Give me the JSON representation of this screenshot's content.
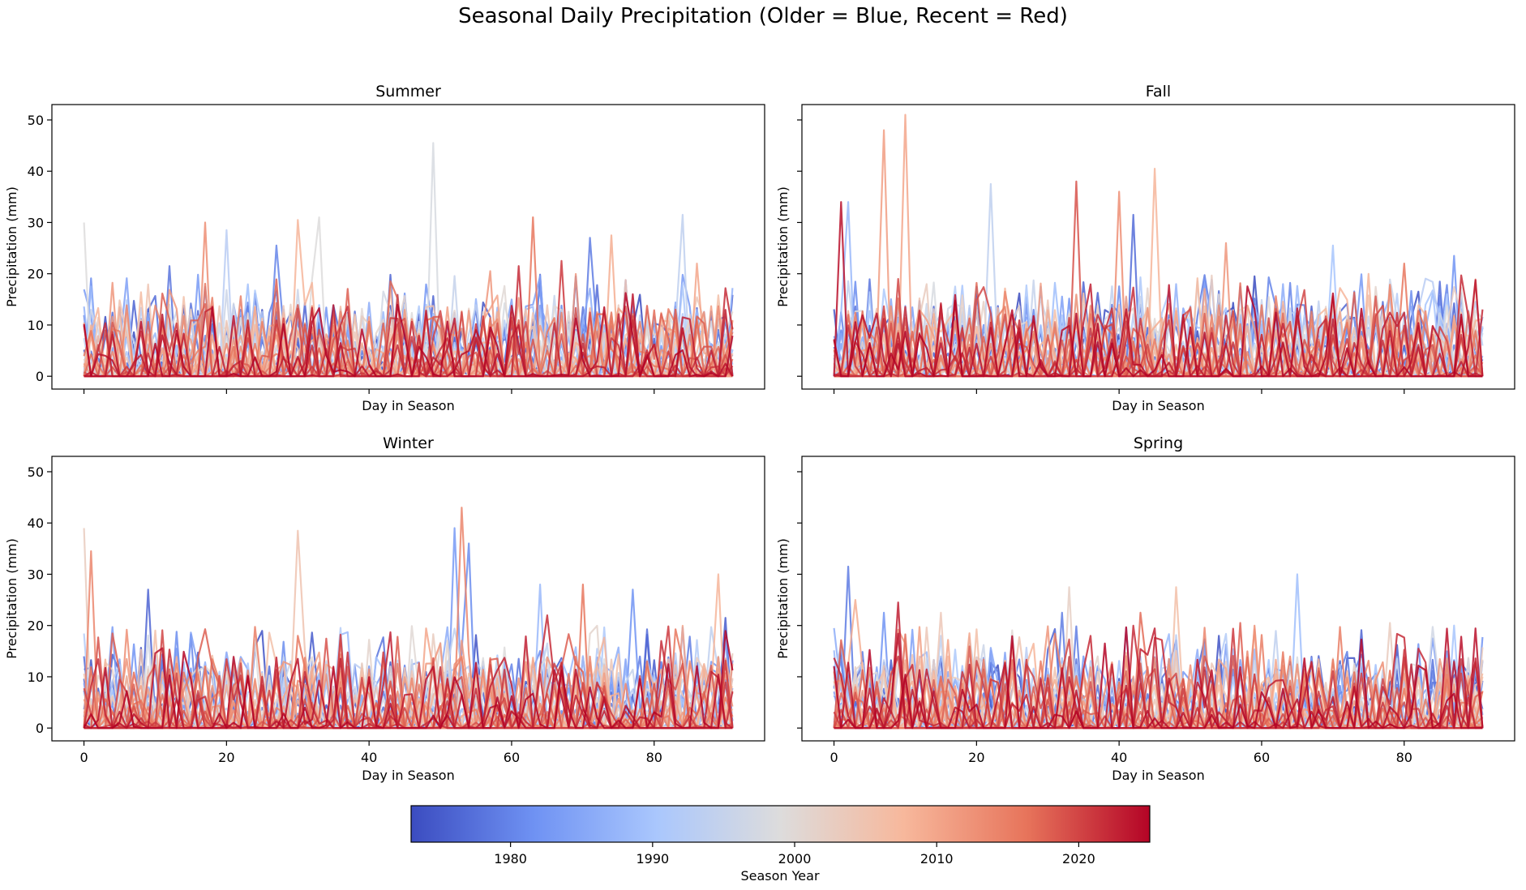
{
  "chart_data": {
    "type": "line",
    "title": "Seasonal Daily Precipitation (Older = Blue, Recent = Red)",
    "colormap": "coolwarm",
    "colorbar": {
      "label": "Season Year",
      "range": [
        1973,
        2025
      ],
      "ticks": [
        1980,
        1990,
        2000,
        2010,
        2020
      ],
      "tick_labels": [
        "1980",
        "1990",
        "2000",
        "2010",
        "2020"
      ],
      "colors": [
        "#3b4cc0",
        "#6f92f3",
        "#aac7fd",
        "#dddcdc",
        "#f7b89c",
        "#e7745b",
        "#b40426"
      ]
    },
    "shared_y": true,
    "ylim": [
      -2.5,
      53
    ],
    "xlim": [
      -4.5,
      95.5
    ],
    "yticks": [
      0,
      10,
      20,
      30,
      40,
      50
    ],
    "xticks": [
      0,
      20,
      40,
      60,
      80
    ],
    "years": [
      1973,
      2025
    ],
    "days": [
      0,
      91
    ],
    "panels": [
      {
        "title": "Summer",
        "xlabel": "Day in Season",
        "ylabel": "Precipitation (mm)",
        "show_ylabels": true,
        "show_xlabels": false,
        "peaks": [
          {
            "day": 0,
            "value": 30,
            "year": 1999
          },
          {
            "day": 12,
            "value": 21.5,
            "year": 1978
          },
          {
            "day": 17,
            "value": 30,
            "year": 2013
          },
          {
            "day": 20,
            "value": 28.5,
            "year": 1993
          },
          {
            "day": 27,
            "value": 25.5,
            "year": 1980
          },
          {
            "day": 30,
            "value": 30.5,
            "year": 2008
          },
          {
            "day": 33,
            "value": 31,
            "year": 1999
          },
          {
            "day": 49,
            "value": 45.5,
            "year": 1998
          },
          {
            "day": 57,
            "value": 20.5,
            "year": 2012
          },
          {
            "day": 61,
            "value": 21.5,
            "year": 2022
          },
          {
            "day": 63,
            "value": 31,
            "year": 2016
          },
          {
            "day": 67,
            "value": 22.5,
            "year": 2021
          },
          {
            "day": 71,
            "value": 27,
            "year": 1979
          },
          {
            "day": 74,
            "value": 27.5,
            "year": 2009
          },
          {
            "day": 77,
            "value": 16,
            "year": 2024
          },
          {
            "day": 84,
            "value": 31.5,
            "year": 1994
          },
          {
            "day": 86,
            "value": 22,
            "year": 2010
          }
        ]
      },
      {
        "title": "Fall",
        "xlabel": "Day in Season",
        "ylabel": "Precipitation (mm)",
        "show_ylabels": false,
        "show_xlabels": false,
        "peaks": [
          {
            "day": 1,
            "value": 34,
            "year": 2024
          },
          {
            "day": 2,
            "value": 34,
            "year": 1988
          },
          {
            "day": 7,
            "value": 48,
            "year": 2011
          },
          {
            "day": 10,
            "value": 51,
            "year": 2010
          },
          {
            "day": 22,
            "value": 37.5,
            "year": 1994
          },
          {
            "day": 34,
            "value": 38,
            "year": 2019
          },
          {
            "day": 40,
            "value": 36,
            "year": 2013
          },
          {
            "day": 42,
            "value": 31.5,
            "year": 1977
          },
          {
            "day": 45,
            "value": 40.5,
            "year": 2008
          },
          {
            "day": 55,
            "value": 26,
            "year": 2012
          },
          {
            "day": 70,
            "value": 25.5,
            "year": 1990
          },
          {
            "day": 80,
            "value": 22,
            "year": 2016
          },
          {
            "day": 87,
            "value": 23.5,
            "year": 1982
          }
        ]
      },
      {
        "title": "Winter",
        "xlabel": "Day in Season",
        "ylabel": "Precipitation (mm)",
        "show_ylabels": true,
        "show_xlabels": true,
        "peaks": [
          {
            "day": 0,
            "value": 39,
            "year": 2003
          },
          {
            "day": 1,
            "value": 34.5,
            "year": 2014
          },
          {
            "day": 9,
            "value": 27,
            "year": 1976
          },
          {
            "day": 30,
            "value": 38.5,
            "year": 2005
          },
          {
            "day": 52,
            "value": 39,
            "year": 1983
          },
          {
            "day": 53,
            "value": 43,
            "year": 2014
          },
          {
            "day": 54,
            "value": 36,
            "year": 1981
          },
          {
            "day": 64,
            "value": 28,
            "year": 1988
          },
          {
            "day": 65,
            "value": 22,
            "year": 2022
          },
          {
            "day": 70,
            "value": 28,
            "year": 2016
          },
          {
            "day": 77,
            "value": 27,
            "year": 1982
          },
          {
            "day": 89,
            "value": 30,
            "year": 2008
          },
          {
            "day": 90,
            "value": 21.5,
            "year": 1975
          }
        ]
      },
      {
        "title": "Spring",
        "xlabel": "Day in Season",
        "ylabel": "Precipitation (mm)",
        "show_ylabels": false,
        "show_xlabels": true,
        "peaks": [
          {
            "day": 2,
            "value": 31.5,
            "year": 1979
          },
          {
            "day": 3,
            "value": 25,
            "year": 2009
          },
          {
            "day": 7,
            "value": 22.5,
            "year": 1982
          },
          {
            "day": 9,
            "value": 24.5,
            "year": 2023
          },
          {
            "day": 15,
            "value": 22.5,
            "year": 2004
          },
          {
            "day": 32,
            "value": 22.5,
            "year": 1979
          },
          {
            "day": 33,
            "value": 27.5,
            "year": 2002
          },
          {
            "day": 36,
            "value": 18,
            "year": 2022
          },
          {
            "day": 43,
            "value": 22.5,
            "year": 2017
          },
          {
            "day": 48,
            "value": 27.5,
            "year": 2006
          },
          {
            "day": 57,
            "value": 20.5,
            "year": 2018
          },
          {
            "day": 65,
            "value": 30,
            "year": 1989
          },
          {
            "day": 78,
            "value": 20.5,
            "year": 2003
          },
          {
            "day": 82,
            "value": 15.5,
            "year": 2022
          },
          {
            "day": 87,
            "value": 20,
            "year": 1990
          },
          {
            "day": 90,
            "value": 12.5,
            "year": 1978
          }
        ]
      }
    ]
  }
}
